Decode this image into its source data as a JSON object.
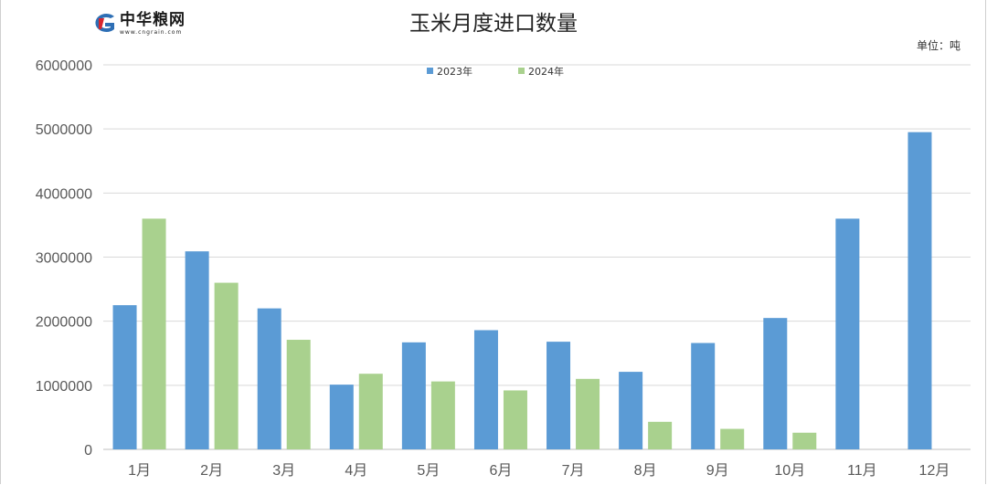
{
  "logo": {
    "name": "中华粮网",
    "url": "www.cngrain.com"
  },
  "colors": {
    "series_2023": "#5b9bd5",
    "series_2024": "#a9d18e",
    "grid": "#d9d9d9",
    "axis": "#bfbfbf"
  },
  "chart_data": {
    "type": "bar",
    "title": "玉米月度进口数量",
    "unit_label": "单位：吨",
    "xlabel": "",
    "ylabel": "",
    "categories": [
      "1月",
      "2月",
      "3月",
      "4月",
      "5月",
      "6月",
      "7月",
      "8月",
      "9月",
      "10月",
      "11月",
      "12月"
    ],
    "series": [
      {
        "name": "2023年",
        "values": [
          2250000,
          3090000,
          2200000,
          1010000,
          1670000,
          1860000,
          1680000,
          1210000,
          1660000,
          2050000,
          3600000,
          4950000
        ]
      },
      {
        "name": "2024年",
        "values": [
          3600000,
          2600000,
          1710000,
          1180000,
          1060000,
          920000,
          1100000,
          430000,
          320000,
          260000,
          null,
          null
        ]
      }
    ],
    "ylim": [
      0,
      6000000
    ],
    "yticks": [
      "0",
      "1000000",
      "2000000",
      "3000000",
      "4000000",
      "5000000",
      "6000000"
    ],
    "grid": true,
    "legend_position": "top-center"
  }
}
